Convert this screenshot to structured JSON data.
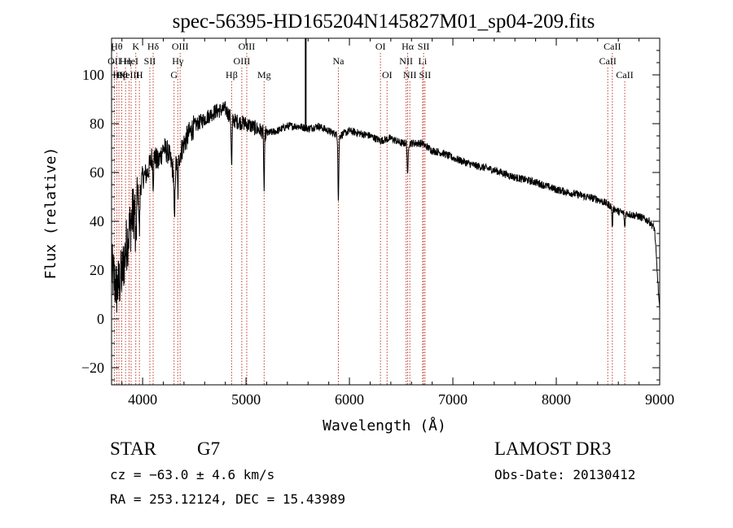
{
  "chart_data": {
    "type": "line",
    "title": "spec-56395-HD165204N145827M01_sp04-209.fits",
    "xlabel": "Wavelength (Å)",
    "ylabel": "Flux (relative)",
    "xlim": [
      3700,
      9000
    ],
    "ylim": [
      -27,
      115
    ],
    "xticks": [
      4000,
      5000,
      6000,
      7000,
      8000,
      9000
    ],
    "yticks": [
      -20,
      0,
      20,
      40,
      60,
      80,
      100
    ],
    "series": [
      {
        "name": "spectrum",
        "anchors": [
          [
            3700,
            20
          ],
          [
            3750,
            12
          ],
          [
            3800,
            18
          ],
          [
            3850,
            32
          ],
          [
            3900,
            42
          ],
          [
            3950,
            50
          ],
          [
            4000,
            58
          ],
          [
            4050,
            60
          ],
          [
            4100,
            68
          ],
          [
            4150,
            64
          ],
          [
            4200,
            70
          ],
          [
            4250,
            68
          ],
          [
            4300,
            60
          ],
          [
            4350,
            66
          ],
          [
            4400,
            72
          ],
          [
            4450,
            76
          ],
          [
            4500,
            79
          ],
          [
            4600,
            82
          ],
          [
            4700,
            85
          ],
          [
            4800,
            86
          ],
          [
            4860,
            82
          ],
          [
            4900,
            81
          ],
          [
            5000,
            80
          ],
          [
            5100,
            78
          ],
          [
            5200,
            76
          ],
          [
            5300,
            77
          ],
          [
            5400,
            79
          ],
          [
            5500,
            79
          ],
          [
            5600,
            78
          ],
          [
            5700,
            79
          ],
          [
            5800,
            77
          ],
          [
            5900,
            75
          ],
          [
            6000,
            77
          ],
          [
            6100,
            76
          ],
          [
            6200,
            75
          ],
          [
            6300,
            73
          ],
          [
            6400,
            74
          ],
          [
            6500,
            72
          ],
          [
            6600,
            72
          ],
          [
            6700,
            72
          ],
          [
            6800,
            69
          ],
          [
            6900,
            68
          ],
          [
            7000,
            66
          ],
          [
            7200,
            63
          ],
          [
            7400,
            61
          ],
          [
            7600,
            58
          ],
          [
            7800,
            56
          ],
          [
            8000,
            53
          ],
          [
            8200,
            51
          ],
          [
            8400,
            49
          ],
          [
            8500,
            47
          ],
          [
            8600,
            44
          ],
          [
            8700,
            43
          ],
          [
            8800,
            42
          ],
          [
            8900,
            40
          ],
          [
            8950,
            37
          ],
          [
            9000,
            3
          ]
        ],
        "absorption": [
          {
            "x": 3934,
            "depth": 22
          },
          {
            "x": 3969,
            "depth": 18
          },
          {
            "x": 4102,
            "depth": 12
          },
          {
            "x": 4308,
            "depth": 22
          },
          {
            "x": 4341,
            "depth": 14
          },
          {
            "x": 4861,
            "depth": 20
          },
          {
            "x": 5175,
            "depth": 24
          },
          {
            "x": 5893,
            "depth": 27
          },
          {
            "x": 6563,
            "depth": 14
          },
          {
            "x": 8542,
            "depth": 8
          },
          {
            "x": 8662,
            "depth": 6
          }
        ]
      }
    ],
    "line_markers": [
      {
        "x": 3727,
        "label": "OII",
        "row": 1
      },
      {
        "x": 3750,
        "label": "Hθ",
        "row": 0
      },
      {
        "x": 3771,
        "label": "Hη",
        "row": 2
      },
      {
        "x": 3798,
        "label": "Hθ",
        "row": 2
      },
      {
        "x": 3835,
        "label": "Hη",
        "row": 1
      },
      {
        "x": 3869,
        "label": "NeIII",
        "row": 2
      },
      {
        "x": 3889,
        "label": "HeI",
        "row": 1
      },
      {
        "x": 3934,
        "label": "K",
        "row": 0
      },
      {
        "x": 3969,
        "label": "H",
        "row": 2
      },
      {
        "x": 4070,
        "label": "SII",
        "row": 1
      },
      {
        "x": 4102,
        "label": "Hδ",
        "row": 0
      },
      {
        "x": 4304,
        "label": "G",
        "row": 2
      },
      {
        "x": 4340,
        "label": "Hγ",
        "row": 1
      },
      {
        "x": 4363,
        "label": "OIII",
        "row": 0
      },
      {
        "x": 4861,
        "label": "Hβ",
        "row": 2
      },
      {
        "x": 4959,
        "label": "OIII",
        "row": 1
      },
      {
        "x": 5007,
        "label": "OIII",
        "row": 0
      },
      {
        "x": 5175,
        "label": "Mg",
        "row": 2
      },
      {
        "x": 5893,
        "label": "Na",
        "row": 1
      },
      {
        "x": 6300,
        "label": "OI",
        "row": 0
      },
      {
        "x": 6364,
        "label": "OI",
        "row": 2
      },
      {
        "x": 6548,
        "label": "NII",
        "row": 1
      },
      {
        "x": 6563,
        "label": "Hα",
        "row": 0
      },
      {
        "x": 6584,
        "label": "NII",
        "row": 2
      },
      {
        "x": 6707,
        "label": "Li",
        "row": 1
      },
      {
        "x": 6717,
        "label": "SII",
        "row": 0
      },
      {
        "x": 6731,
        "label": "SII",
        "row": 2
      },
      {
        "x": 8498,
        "label": "CaII",
        "row": 1
      },
      {
        "x": 8542,
        "label": "CaII",
        "row": 0
      },
      {
        "x": 8662,
        "label": "CaII",
        "row": 2
      }
    ],
    "spike_x": 5577
  },
  "info": {
    "class": "STAR",
    "subclass": "G7",
    "survey": "LAMOST DR3",
    "cz": "cz = −63.0 ± 4.6 km/s",
    "obs_date": "Obs-Date: 20130412",
    "coords": "RA = 253.12124, DEC =  15.43989"
  }
}
